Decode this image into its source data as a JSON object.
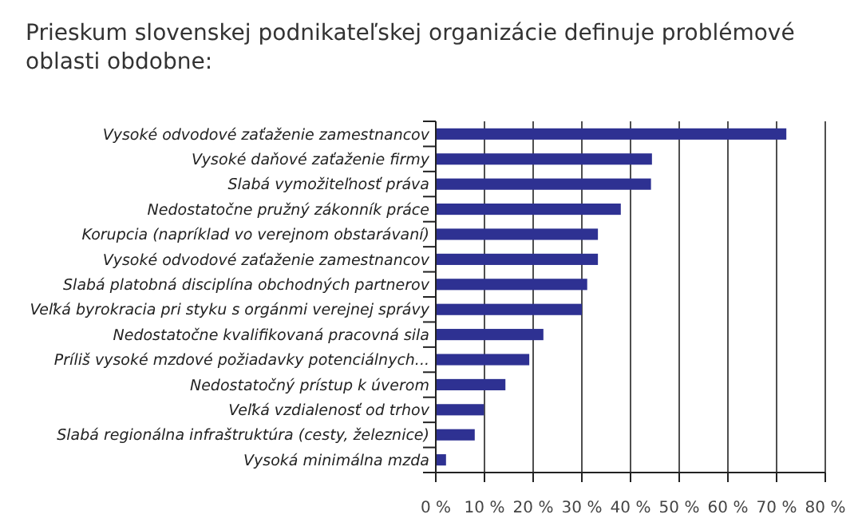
{
  "chart_data": {
    "type": "bar",
    "orientation": "horizontal",
    "title": "Prieskum slovenskej podnikateľskej organizácie definuje problémové oblasti obdobne:",
    "categories": [
      "Vysoké odvodové zaťaženie zamestnancov",
      "Vysoké daňové zaťaženie firmy",
      "Slabá vymožiteľnosť práva",
      "Nedostatočne pružný zákonník práce",
      "Korupcia (napríklad vo verejnom obstarávaní)",
      "Vysoké odvodové zaťaženie zamestnancov",
      "Slabá platobná disciplína obchodných partnerov",
      "Veľká byrokracia pri styku s orgánmi verejnej správy",
      "Nedostatočne kvalifikovaná pracovná sila",
      "Príliš vysoké mzdové požiadavky potenciálnych...",
      "Nedostatočný prístup k úverom",
      "Veľká vzdialenosť od trhov",
      "Slabá regionálna infraštruktúra (cesty, železnice)",
      "Vysoká minimálna mzda"
    ],
    "values": [
      72,
      44.4,
      44.2,
      38,
      33.3,
      33.3,
      31.1,
      30,
      22.1,
      19.2,
      14.3,
      9.9,
      8,
      2.1
    ],
    "color": "#2e3192",
    "xlim": [
      0,
      80
    ],
    "xticks": [
      {
        "value": 0,
        "label": "0 %"
      },
      {
        "value": 10,
        "label": "10 %"
      },
      {
        "value": 20,
        "label": "20 %"
      },
      {
        "value": 30,
        "label": "30 %"
      },
      {
        "value": 40,
        "label": "40 %"
      },
      {
        "value": 50,
        "label": "50 %"
      },
      {
        "value": 60,
        "label": "60 %"
      },
      {
        "value": 70,
        "label": "70 %"
      },
      {
        "value": 80,
        "label": "80 %"
      }
    ],
    "grid": "x"
  }
}
